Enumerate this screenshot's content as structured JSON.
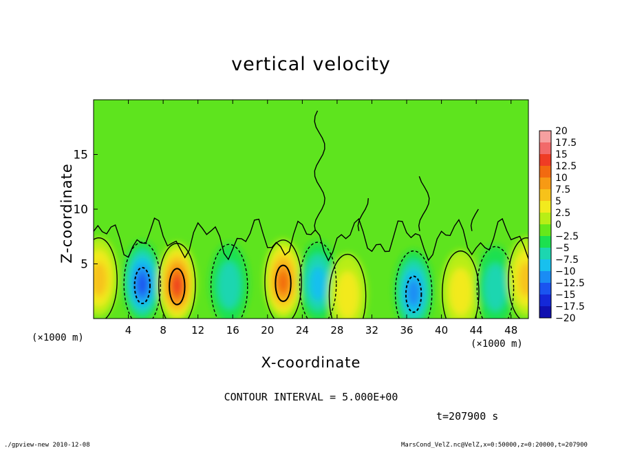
{
  "chart_data": {
    "type": "heatmap",
    "title": "vertical velocity",
    "xlabel": "X-coordinate",
    "ylabel": "Z-coordinate",
    "x_unit": "(×1000 m)",
    "y_unit": "(×1000 m)",
    "xlim": [
      0,
      50
    ],
    "ylim": [
      0,
      20
    ],
    "x_ticks": [
      4,
      8,
      12,
      16,
      20,
      24,
      28,
      32,
      36,
      40,
      44,
      48
    ],
    "y_ticks": [
      5,
      10,
      15
    ],
    "colorbar": {
      "levels": [
        "20",
        "17.5",
        "15",
        "12.5",
        "10",
        "7.5",
        "5",
        "2.5",
        "0",
        "−2.5",
        "−5",
        "−7.5",
        "−10",
        "−12.5",
        "−15",
        "−17.5",
        "−20"
      ],
      "colors": [
        "#f6a0a0",
        "#f26a6a",
        "#ef3c24",
        "#f26a10",
        "#f79a14",
        "#f7c21a",
        "#f2ea1e",
        "#b8ee16",
        "#66e81a",
        "#1ce050",
        "#1cd6b0",
        "#18c0ee",
        "#1a8cf4",
        "#1a54f0",
        "#1428d8",
        "#1010b0",
        "#6010b8"
      ],
      "legend_position": "right"
    },
    "features": [
      {
        "x": 0.6,
        "z": 3.8,
        "value": 8
      },
      {
        "x": 5.6,
        "z": 3.4,
        "value": -12
      },
      {
        "x": 9.6,
        "z": 3.3,
        "value": 15
      },
      {
        "x": 15.6,
        "z": 3.2,
        "value": -6
      },
      {
        "x": 21.8,
        "z": 3.6,
        "value": 12
      },
      {
        "x": 25.8,
        "z": 3.4,
        "value": -8
      },
      {
        "x": 29.2,
        "z": 2.3,
        "value": 5
      },
      {
        "x": 36.8,
        "z": 2.6,
        "value": -11
      },
      {
        "x": 42.2,
        "z": 2.6,
        "value": 6
      },
      {
        "x": 46.2,
        "z": 3.0,
        "value": -4
      },
      {
        "x": 49.8,
        "z": 3.8,
        "value": 7
      }
    ],
    "contour_interval": "CONTOUR INTERVAL = 5.000E+00",
    "grid": false
  },
  "labels": {
    "title": "vertical velocity",
    "xlabel": "X-coordinate",
    "ylabel": "Z-coordinate",
    "xunit_left": "(×1000 m)",
    "xunit_right": "(×1000 m)",
    "contour": "CONTOUR INTERVAL = 5.000E+00",
    "time": "t=207900 s",
    "footer_left": "./gpview-new  2010-12-08",
    "footer_right": "MarsCond_VelZ.nc@VelZ,x=0:50000,z=0:20000,t=207900"
  }
}
